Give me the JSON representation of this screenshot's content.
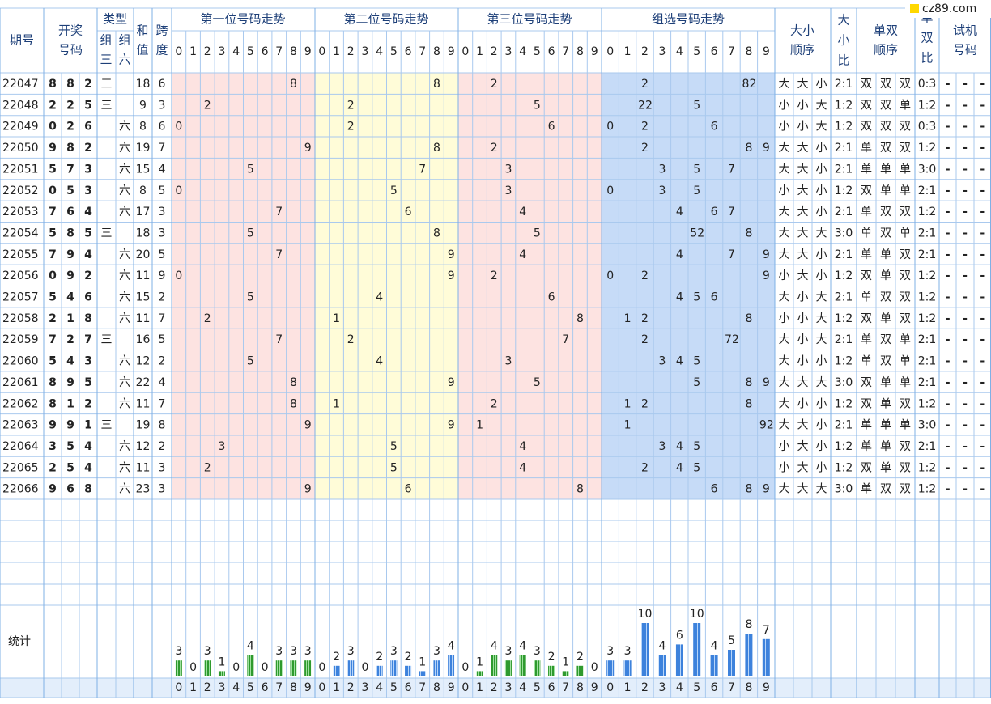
{
  "logo": "cz89.com",
  "header": {
    "period": "期号",
    "draw": [
      "开奖",
      "号码"
    ],
    "type": "类型",
    "group3": [
      "组",
      "三"
    ],
    "group6": [
      "组",
      "六"
    ],
    "sum": [
      "和",
      "值"
    ],
    "span": [
      "跨",
      "度"
    ],
    "pos1": "第一位号码走势",
    "pos2": "第二位号码走势",
    "pos3": "第三位号码走势",
    "group": "组选号码走势",
    "size_order": [
      "大小",
      "顺序"
    ],
    "size_ratio": [
      "大",
      "小",
      "比"
    ],
    "parity_order": [
      "单双",
      "顺序"
    ],
    "parity_ratio": [
      "单",
      "双",
      "比"
    ],
    "trial": [
      "试机",
      "号码"
    ]
  },
  "digits": [
    0,
    1,
    2,
    3,
    4,
    5,
    6,
    7,
    8,
    9
  ],
  "palette": {
    "三": "#e0201b",
    "六": "#0b2d8e",
    "大": "#e0201b",
    "小": "#1447c9",
    "单": "#e0201b",
    "双": "#1447c9"
  },
  "rows": [
    {
      "period": "22047",
      "numbers": [
        8,
        8,
        2
      ],
      "type": "三",
      "sum": 18,
      "span": 6,
      "size": [
        "大",
        "大",
        "小"
      ],
      "size_ratio": "2:1",
      "parity": [
        "双",
        "双",
        "双"
      ],
      "parity_ratio": "0:3",
      "trial": [
        "-",
        "-",
        "-"
      ],
      "repeat": 2
    },
    {
      "period": "22048",
      "numbers": [
        2,
        2,
        5
      ],
      "type": "三",
      "sum": 9,
      "span": 3,
      "size": [
        "小",
        "小",
        "大"
      ],
      "size_ratio": "1:2",
      "parity": [
        "双",
        "双",
        "单"
      ],
      "parity_ratio": "1:2",
      "trial": [
        "-",
        "-",
        "-"
      ],
      "repeat": 2
    },
    {
      "period": "22049",
      "numbers": [
        0,
        2,
        6
      ],
      "type": "六",
      "sum": 8,
      "span": 6,
      "size": [
        "小",
        "小",
        "大"
      ],
      "size_ratio": "1:2",
      "parity": [
        "双",
        "双",
        "双"
      ],
      "parity_ratio": "0:3",
      "trial": [
        "-",
        "-",
        "-"
      ]
    },
    {
      "period": "22050",
      "numbers": [
        9,
        8,
        2
      ],
      "type": "六",
      "sum": 19,
      "span": 7,
      "size": [
        "大",
        "大",
        "小"
      ],
      "size_ratio": "2:1",
      "parity": [
        "单",
        "双",
        "双"
      ],
      "parity_ratio": "1:2",
      "trial": [
        "-",
        "-",
        "-"
      ]
    },
    {
      "period": "22051",
      "numbers": [
        5,
        7,
        3
      ],
      "type": "六",
      "sum": 15,
      "span": 4,
      "size": [
        "大",
        "大",
        "小"
      ],
      "size_ratio": "2:1",
      "parity": [
        "单",
        "单",
        "单"
      ],
      "parity_ratio": "3:0",
      "trial": [
        "-",
        "-",
        "-"
      ]
    },
    {
      "period": "22052",
      "numbers": [
        0,
        5,
        3
      ],
      "type": "六",
      "sum": 8,
      "span": 5,
      "size": [
        "小",
        "大",
        "小"
      ],
      "size_ratio": "1:2",
      "parity": [
        "双",
        "单",
        "单"
      ],
      "parity_ratio": "2:1",
      "trial": [
        "-",
        "-",
        "-"
      ]
    },
    {
      "period": "22053",
      "numbers": [
        7,
        6,
        4
      ],
      "type": "六",
      "sum": 17,
      "span": 3,
      "size": [
        "大",
        "大",
        "小"
      ],
      "size_ratio": "2:1",
      "parity": [
        "单",
        "双",
        "双"
      ],
      "parity_ratio": "1:2",
      "trial": [
        "-",
        "-",
        "-"
      ]
    },
    {
      "period": "22054",
      "numbers": [
        5,
        8,
        5
      ],
      "type": "三",
      "sum": 18,
      "span": 3,
      "size": [
        "大",
        "大",
        "大"
      ],
      "size_ratio": "3:0",
      "parity": [
        "单",
        "双",
        "单"
      ],
      "parity_ratio": "2:1",
      "trial": [
        "-",
        "-",
        "-"
      ],
      "repeat": 2
    },
    {
      "period": "22055",
      "numbers": [
        7,
        9,
        4
      ],
      "type": "六",
      "sum": 20,
      "span": 5,
      "size": [
        "大",
        "大",
        "小"
      ],
      "size_ratio": "2:1",
      "parity": [
        "单",
        "单",
        "双"
      ],
      "parity_ratio": "2:1",
      "trial": [
        "-",
        "-",
        "-"
      ]
    },
    {
      "period": "22056",
      "numbers": [
        0,
        9,
        2
      ],
      "type": "六",
      "sum": 11,
      "span": 9,
      "size": [
        "小",
        "大",
        "小"
      ],
      "size_ratio": "1:2",
      "parity": [
        "双",
        "单",
        "双"
      ],
      "parity_ratio": "1:2",
      "trial": [
        "-",
        "-",
        "-"
      ]
    },
    {
      "period": "22057",
      "numbers": [
        5,
        4,
        6
      ],
      "type": "六",
      "sum": 15,
      "span": 2,
      "size": [
        "大",
        "小",
        "大"
      ],
      "size_ratio": "2:1",
      "parity": [
        "单",
        "双",
        "双"
      ],
      "parity_ratio": "1:2",
      "trial": [
        "-",
        "-",
        "-"
      ]
    },
    {
      "period": "22058",
      "numbers": [
        2,
        1,
        8
      ],
      "type": "六",
      "sum": 11,
      "span": 7,
      "size": [
        "小",
        "小",
        "大"
      ],
      "size_ratio": "1:2",
      "parity": [
        "双",
        "单",
        "双"
      ],
      "parity_ratio": "1:2",
      "trial": [
        "-",
        "-",
        "-"
      ]
    },
    {
      "period": "22059",
      "numbers": [
        7,
        2,
        7
      ],
      "type": "三",
      "sum": 16,
      "span": 5,
      "size": [
        "大",
        "小",
        "大"
      ],
      "size_ratio": "2:1",
      "parity": [
        "单",
        "双",
        "单"
      ],
      "parity_ratio": "2:1",
      "trial": [
        "-",
        "-",
        "-"
      ],
      "repeat": 2
    },
    {
      "period": "22060",
      "numbers": [
        5,
        4,
        3
      ],
      "type": "六",
      "sum": 12,
      "span": 2,
      "size": [
        "大",
        "小",
        "小"
      ],
      "size_ratio": "1:2",
      "parity": [
        "单",
        "双",
        "单"
      ],
      "parity_ratio": "2:1",
      "trial": [
        "-",
        "-",
        "-"
      ]
    },
    {
      "period": "22061",
      "numbers": [
        8,
        9,
        5
      ],
      "type": "六",
      "sum": 22,
      "span": 4,
      "size": [
        "大",
        "大",
        "大"
      ],
      "size_ratio": "3:0",
      "parity": [
        "双",
        "单",
        "单"
      ],
      "parity_ratio": "2:1",
      "trial": [
        "-",
        "-",
        "-"
      ]
    },
    {
      "period": "22062",
      "numbers": [
        8,
        1,
        2
      ],
      "type": "六",
      "sum": 11,
      "span": 7,
      "size": [
        "大",
        "小",
        "小"
      ],
      "size_ratio": "1:2",
      "parity": [
        "双",
        "单",
        "双"
      ],
      "parity_ratio": "1:2",
      "trial": [
        "-",
        "-",
        "-"
      ]
    },
    {
      "period": "22063",
      "numbers": [
        9,
        9,
        1
      ],
      "type": "三",
      "sum": 19,
      "span": 8,
      "size": [
        "大",
        "大",
        "小"
      ],
      "size_ratio": "2:1",
      "parity": [
        "单",
        "单",
        "单"
      ],
      "parity_ratio": "3:0",
      "trial": [
        "-",
        "-",
        "-"
      ],
      "repeat": 2
    },
    {
      "period": "22064",
      "numbers": [
        3,
        5,
        4
      ],
      "type": "六",
      "sum": 12,
      "span": 2,
      "size": [
        "小",
        "大",
        "小"
      ],
      "size_ratio": "1:2",
      "parity": [
        "单",
        "单",
        "双"
      ],
      "parity_ratio": "2:1",
      "trial": [
        "-",
        "-",
        "-"
      ]
    },
    {
      "period": "22065",
      "numbers": [
        2,
        5,
        4
      ],
      "type": "六",
      "sum": 11,
      "span": 3,
      "size": [
        "小",
        "大",
        "小"
      ],
      "size_ratio": "1:2",
      "parity": [
        "双",
        "单",
        "双"
      ],
      "parity_ratio": "1:2",
      "trial": [
        "-",
        "-",
        "-"
      ]
    },
    {
      "period": "22066",
      "numbers": [
        9,
        6,
        8
      ],
      "type": "六",
      "sum": 23,
      "span": 3,
      "size": [
        "大",
        "大",
        "大"
      ],
      "size_ratio": "3:0",
      "parity": [
        "单",
        "双",
        "双"
      ],
      "parity_ratio": "1:2",
      "trial": [
        "-",
        "-",
        "-"
      ]
    }
  ],
  "stats": {
    "label": "统计",
    "pos1": [
      3,
      0,
      3,
      1,
      0,
      4,
      0,
      3,
      3,
      3
    ],
    "pos2": [
      0,
      2,
      3,
      0,
      2,
      3,
      2,
      1,
      3,
      4
    ],
    "pos3": [
      0,
      1,
      4,
      3,
      4,
      3,
      2,
      1,
      2,
      0
    ],
    "group": [
      3,
      3,
      10,
      4,
      6,
      10,
      4,
      5,
      8,
      7
    ]
  }
}
